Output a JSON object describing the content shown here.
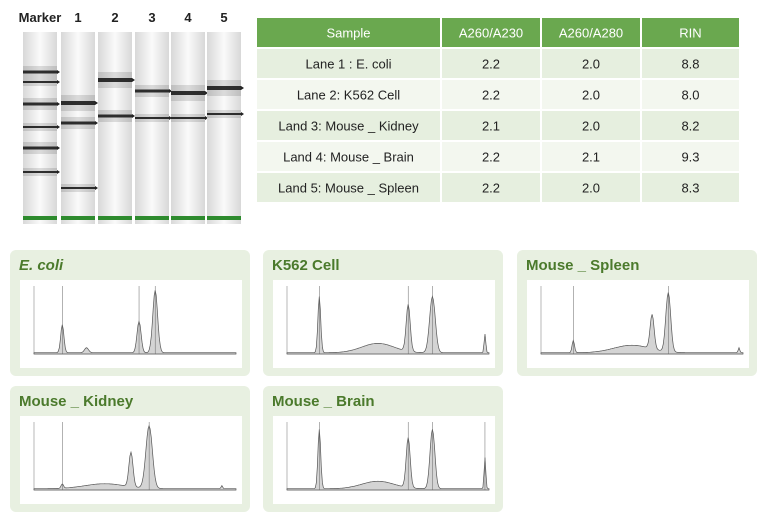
{
  "gel": {
    "lanes": [
      "Marker",
      "1",
      "2",
      "3",
      "4",
      "5"
    ]
  },
  "table": {
    "header": [
      "Sample",
      "A260/A230",
      "A260/A280",
      "RIN"
    ],
    "rows": [
      [
        "Lane 1 : E. coli",
        "2.2",
        "2.0",
        "8.8"
      ],
      [
        "Lane 2: K562 Cell",
        "2.2",
        "2.0",
        "8.0"
      ],
      [
        "Land 3: Mouse _ Kidney",
        "2.1",
        "2.0",
        "8.2"
      ],
      [
        "Land 4: Mouse _ Brain",
        "2.2",
        "2.1",
        "9.3"
      ],
      [
        "Land 5: Mouse _ Spleen",
        "2.2",
        "2.0",
        "8.3"
      ]
    ]
  },
  "panels": [
    {
      "title": "E. coli"
    },
    {
      "title": "K562 Cell"
    },
    {
      "title": "Mouse _ Spleen"
    },
    {
      "title": "Mouse _ Kidney"
    },
    {
      "title": "Mouse _ Brain"
    }
  ]
}
